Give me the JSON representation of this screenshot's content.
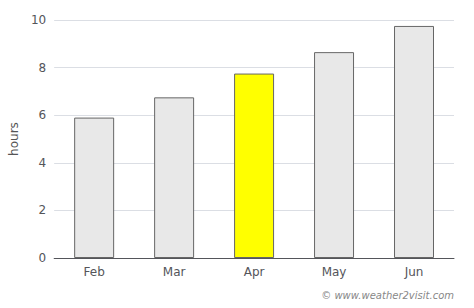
{
  "chart_data": {
    "type": "bar",
    "categories": [
      "Feb",
      "Mar",
      "Apr",
      "May",
      "Jun"
    ],
    "values": [
      5.9,
      6.75,
      7.75,
      8.65,
      9.75
    ],
    "colors": [
      "#e8e8e8",
      "#e8e8e8",
      "#ffff00",
      "#e8e8e8",
      "#e8e8e8"
    ],
    "ylabel": "hours",
    "ylim": [
      0,
      10
    ],
    "yticks": [
      0,
      2,
      4,
      6,
      8,
      10
    ],
    "grid": true,
    "annotation": "© www.weather2visit.com"
  }
}
